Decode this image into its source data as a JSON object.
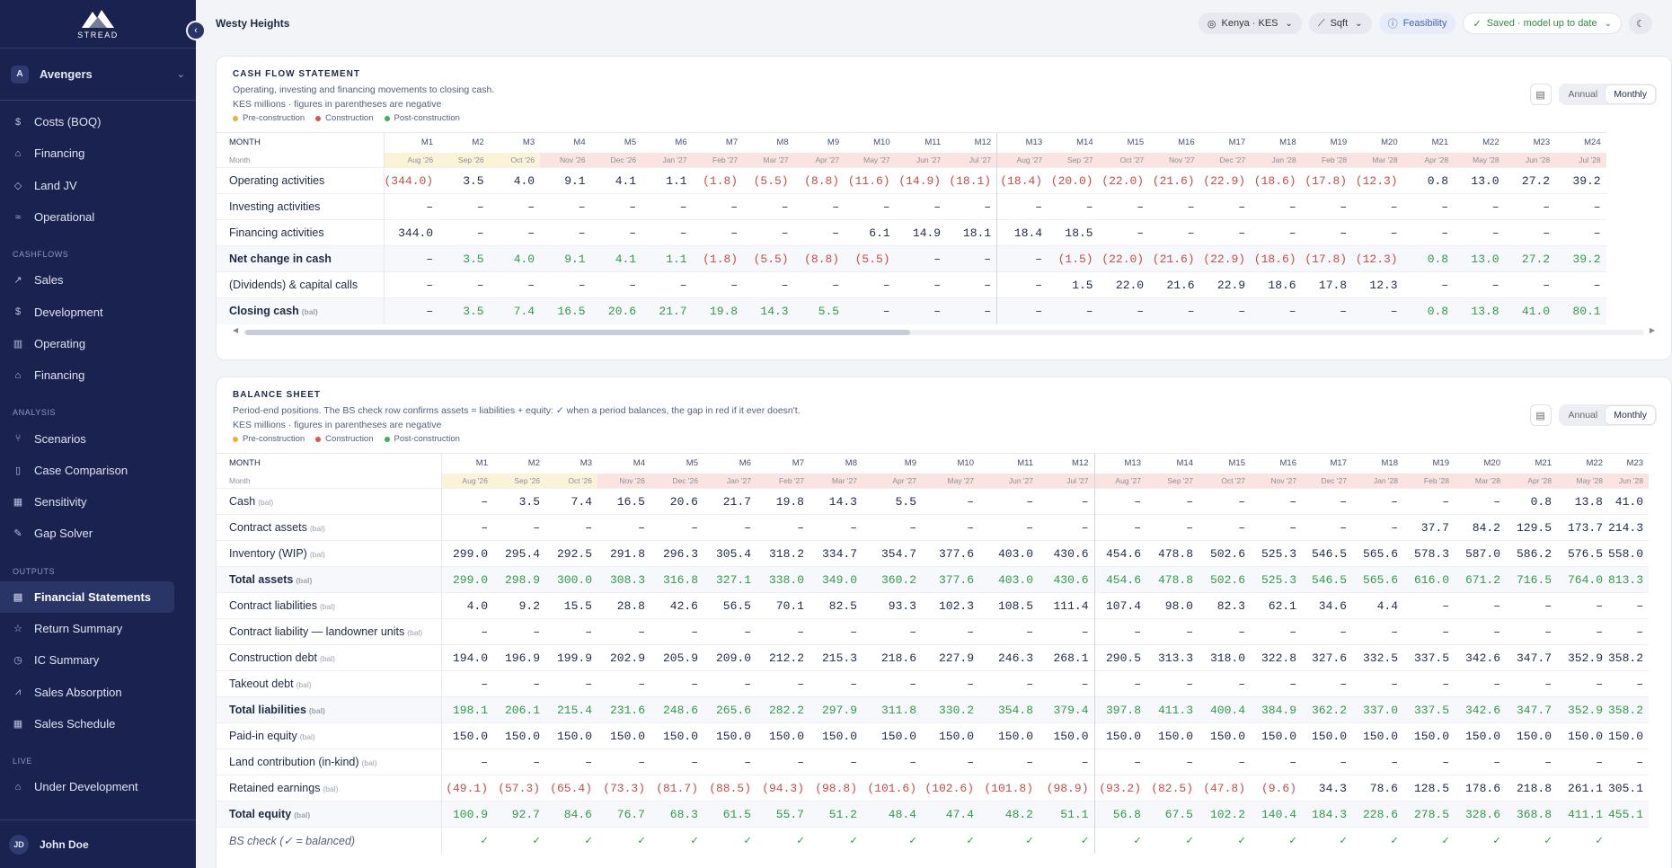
{
  "app": {
    "logo_text": "STREAD",
    "page_title": "Westy Heights"
  },
  "team": {
    "badge": "A",
    "name": "Avengers"
  },
  "sidebar": {
    "top_items": [
      {
        "label": "Costs (BOQ)",
        "icon": "dollar-icon",
        "glyph": "$"
      },
      {
        "label": "Financing",
        "icon": "bank-icon",
        "glyph": "⌂"
      },
      {
        "label": "Land JV",
        "icon": "handshake-icon",
        "glyph": "◇"
      },
      {
        "label": "Operational",
        "icon": "sliders-icon",
        "glyph": "≈"
      }
    ],
    "cashflows_title": "CASHFLOWS",
    "cashflows": [
      {
        "label": "Sales",
        "icon": "trend-icon",
        "glyph": "↗"
      },
      {
        "label": "Development",
        "icon": "dollar-icon",
        "glyph": "$"
      },
      {
        "label": "Operating",
        "icon": "bar-chart-icon",
        "glyph": "▥"
      },
      {
        "label": "Financing",
        "icon": "bank-icon",
        "glyph": "⌂"
      }
    ],
    "analysis_title": "ANALYSIS",
    "analysis": [
      {
        "label": "Scenarios",
        "icon": "branch-icon",
        "glyph": "⑂"
      },
      {
        "label": "Case Comparison",
        "icon": "columns-icon",
        "glyph": "▯"
      },
      {
        "label": "Sensitivity",
        "icon": "grid-icon",
        "glyph": "▦"
      },
      {
        "label": "Gap Solver",
        "icon": "wrench-icon",
        "glyph": "✎"
      }
    ],
    "outputs_title": "OUTPUTS",
    "outputs": [
      {
        "label": "Financial Statements",
        "icon": "document-icon",
        "glyph": "▤",
        "active": true
      },
      {
        "label": "Return Summary",
        "icon": "star-icon",
        "glyph": "☆"
      },
      {
        "label": "IC Summary",
        "icon": "history-icon",
        "glyph": "◷"
      },
      {
        "label": "Sales Absorption",
        "icon": "line-chart-icon",
        "glyph": "⩘"
      },
      {
        "label": "Sales Schedule",
        "icon": "calendar-icon",
        "glyph": "▦"
      }
    ],
    "live_title": "LIVE",
    "live": [
      {
        "label": "Under Development",
        "icon": "building-icon",
        "glyph": "⌂"
      }
    ]
  },
  "user": {
    "initials": "JD",
    "name": "John Doe"
  },
  "topbar": {
    "country": "Kenya · KES",
    "unit": "Sqft",
    "mode": "Feasibility",
    "save_status": "Saved · model up to date"
  },
  "colors": {
    "pre": "#e8b339",
    "construction": "#e0554f",
    "post": "#3fb05a",
    "sidebar": "#1a2350"
  },
  "legend": {
    "pre": "Pre-construction",
    "construction": "Construction",
    "post": "Post-construction"
  },
  "toggle": {
    "annual": "Annual",
    "monthly": "Monthly"
  },
  "cashflow": {
    "title": "CASH FLOW STATEMENT",
    "desc1": "Operating, investing and financing movements to closing cash.",
    "desc2": "KES millions · figures in parentheses are negative",
    "header_label": "MONTH",
    "month_label": "Month",
    "periods": [
      "M1",
      "M2",
      "M3",
      "M4",
      "M5",
      "M6",
      "M7",
      "M8",
      "M9",
      "M10",
      "M11",
      "M12",
      "M13",
      "M14",
      "M15",
      "M16",
      "M17",
      "M18",
      "M19",
      "M20",
      "M21",
      "M22",
      "M23",
      "M24"
    ],
    "months": [
      "Aug '26",
      "Sep '26",
      "Oct '26",
      "Nov '26",
      "Dec '26",
      "Jan '27",
      "Feb '27",
      "Mar '27",
      "Apr '27",
      "May '27",
      "Jun '27",
      "Jul '27",
      "Aug '27",
      "Sep '27",
      "Oct '27",
      "Nov '27",
      "Dec '27",
      "Jan '28",
      "Feb '28",
      "Mar '28",
      "Apr '28",
      "May '28",
      "Jun '28",
      "Jul '28"
    ],
    "phases": [
      "pre",
      "pre",
      "pre",
      "con",
      "con",
      "con",
      "con",
      "con",
      "con",
      "con",
      "con",
      "con",
      "con",
      "con",
      "con",
      "con",
      "con",
      "con",
      "con",
      "con",
      "con",
      "con",
      "con",
      "con"
    ],
    "rows": [
      {
        "label": "Operating activities",
        "values": [
          "(344.0)",
          "3.5",
          "4.0",
          "9.1",
          "4.1",
          "1.1",
          "(1.8)",
          "(5.5)",
          "(8.8)",
          "(11.6)",
          "(14.9)",
          "(18.1)",
          "(18.4)",
          "(20.0)",
          "(22.0)",
          "(21.6)",
          "(22.9)",
          "(18.6)",
          "(17.8)",
          "(12.3)",
          "0.8",
          "13.0",
          "27.2",
          "39.2"
        ]
      },
      {
        "label": "Investing activities",
        "values": [
          "–",
          "–",
          "–",
          "–",
          "–",
          "–",
          "–",
          "–",
          "–",
          "–",
          "–",
          "–",
          "–",
          "–",
          "–",
          "–",
          "–",
          "–",
          "–",
          "–",
          "–",
          "–",
          "–",
          "–"
        ]
      },
      {
        "label": "Financing activities",
        "values": [
          "344.0",
          "–",
          "–",
          "–",
          "–",
          "–",
          "–",
          "–",
          "–",
          "6.1",
          "14.9",
          "18.1",
          "18.4",
          "18.5",
          "–",
          "–",
          "–",
          "–",
          "–",
          "–",
          "–",
          "–",
          "–",
          "–"
        ]
      },
      {
        "label": "Net change in cash",
        "bold": true,
        "colored": true,
        "values": [
          "–",
          "3.5",
          "4.0",
          "9.1",
          "4.1",
          "1.1",
          "(1.8)",
          "(5.5)",
          "(8.8)",
          "(5.5)",
          "–",
          "–",
          "–",
          "(1.5)",
          "(22.0)",
          "(21.6)",
          "(22.9)",
          "(18.6)",
          "(17.8)",
          "(12.3)",
          "0.8",
          "13.0",
          "27.2",
          "39.2"
        ]
      },
      {
        "label": "(Dividends) & capital calls",
        "values": [
          "–",
          "–",
          "–",
          "–",
          "–",
          "–",
          "–",
          "–",
          "–",
          "–",
          "–",
          "–",
          "–",
          "1.5",
          "22.0",
          "21.6",
          "22.9",
          "18.6",
          "17.8",
          "12.3",
          "–",
          "–",
          "–",
          "–"
        ]
      },
      {
        "label": "Closing cash",
        "bal": "(bal)",
        "bold": true,
        "colored": true,
        "values": [
          "–",
          "3.5",
          "7.4",
          "16.5",
          "20.6",
          "21.7",
          "19.8",
          "14.3",
          "5.5",
          "–",
          "–",
          "–",
          "–",
          "–",
          "–",
          "–",
          "–",
          "–",
          "–",
          "–",
          "0.8",
          "13.8",
          "41.0",
          "80.1"
        ]
      }
    ]
  },
  "balance": {
    "title": "BALANCE SHEET",
    "desc1": "Period-end positions. The BS check row confirms assets = liabilities + equity: ✓ when a period balances, the gap in red if it ever doesn't.",
    "desc2": "KES millions · figures in parentheses are negative",
    "header_label": "MONTH",
    "month_label": "Month",
    "periods": [
      "M1",
      "M2",
      "M3",
      "M4",
      "M5",
      "M6",
      "M7",
      "M8",
      "M9",
      "M10",
      "M11",
      "M12",
      "M13",
      "M14",
      "M15",
      "M16",
      "M17",
      "M18",
      "M19",
      "M20",
      "M21",
      "M22",
      "M23"
    ],
    "months": [
      "Aug '26",
      "Sep '26",
      "Oct '26",
      "Nov '26",
      "Dec '26",
      "Jan '27",
      "Feb '27",
      "Mar '27",
      "Apr '27",
      "May '27",
      "Jun '27",
      "Jul '27",
      "Aug '27",
      "Sep '27",
      "Oct '27",
      "Nov '27",
      "Dec '27",
      "Jan '28",
      "Feb '28",
      "Mar '28",
      "Apr '28",
      "May '28",
      "Jun '28"
    ],
    "phases": [
      "pre",
      "pre",
      "pre",
      "con",
      "con",
      "con",
      "con",
      "con",
      "con",
      "con",
      "con",
      "con",
      "con",
      "con",
      "con",
      "con",
      "con",
      "con",
      "con",
      "con",
      "con",
      "con",
      "con"
    ],
    "rows": [
      {
        "label": "Cash",
        "bal": "(bal)",
        "values": [
          "–",
          "3.5",
          "7.4",
          "16.5",
          "20.6",
          "21.7",
          "19.8",
          "14.3",
          "5.5",
          "–",
          "–",
          "–",
          "–",
          "–",
          "–",
          "–",
          "–",
          "–",
          "–",
          "–",
          "0.8",
          "13.8",
          "41.0"
        ]
      },
      {
        "label": "Contract assets",
        "bal": "(bal)",
        "values": [
          "–",
          "–",
          "–",
          "–",
          "–",
          "–",
          "–",
          "–",
          "–",
          "–",
          "–",
          "–",
          "–",
          "–",
          "–",
          "–",
          "–",
          "–",
          "37.7",
          "84.2",
          "129.5",
          "173.7",
          "214.3"
        ]
      },
      {
        "label": "Inventory (WIP)",
        "bal": "(bal)",
        "values": [
          "299.0",
          "295.4",
          "292.5",
          "291.8",
          "296.3",
          "305.4",
          "318.2",
          "334.7",
          "354.7",
          "377.6",
          "403.0",
          "430.6",
          "454.6",
          "478.8",
          "502.6",
          "525.3",
          "546.5",
          "565.6",
          "578.3",
          "587.0",
          "586.2",
          "576.5",
          "558.0"
        ]
      },
      {
        "label": "Total assets",
        "bal": "(bal)",
        "bold": true,
        "colored": true,
        "values": [
          "299.0",
          "298.9",
          "300.0",
          "308.3",
          "316.8",
          "327.1",
          "338.0",
          "349.0",
          "360.2",
          "377.6",
          "403.0",
          "430.6",
          "454.6",
          "478.8",
          "502.6",
          "525.3",
          "546.5",
          "565.6",
          "616.0",
          "671.2",
          "716.5",
          "764.0",
          "813.3"
        ]
      },
      {
        "label": "Contract liabilities",
        "bal": "(bal)",
        "values": [
          "4.0",
          "9.2",
          "15.5",
          "28.8",
          "42.6",
          "56.5",
          "70.1",
          "82.5",
          "93.3",
          "102.3",
          "108.5",
          "111.4",
          "107.4",
          "98.0",
          "82.3",
          "62.1",
          "34.6",
          "4.4",
          "–",
          "–",
          "–",
          "–",
          "–"
        ]
      },
      {
        "label": "Contract liability — landowner units",
        "bal": "(bal)",
        "values": [
          "–",
          "–",
          "–",
          "–",
          "–",
          "–",
          "–",
          "–",
          "–",
          "–",
          "–",
          "–",
          "–",
          "–",
          "–",
          "–",
          "–",
          "–",
          "–",
          "–",
          "–",
          "–",
          "–"
        ]
      },
      {
        "label": "Construction debt",
        "bal": "(bal)",
        "values": [
          "194.0",
          "196.9",
          "199.9",
          "202.9",
          "205.9",
          "209.0",
          "212.2",
          "215.3",
          "218.6",
          "227.9",
          "246.3",
          "268.1",
          "290.5",
          "313.3",
          "318.0",
          "322.8",
          "327.6",
          "332.5",
          "337.5",
          "342.6",
          "347.7",
          "352.9",
          "358.2"
        ]
      },
      {
        "label": "Takeout debt",
        "bal": "(bal)",
        "values": [
          "–",
          "–",
          "–",
          "–",
          "–",
          "–",
          "–",
          "–",
          "–",
          "–",
          "–",
          "–",
          "–",
          "–",
          "–",
          "–",
          "–",
          "–",
          "–",
          "–",
          "–",
          "–",
          "–"
        ]
      },
      {
        "label": "Total liabilities",
        "bal": "(bal)",
        "bold": true,
        "colored": true,
        "values": [
          "198.1",
          "206.1",
          "215.4",
          "231.6",
          "248.6",
          "265.6",
          "282.2",
          "297.9",
          "311.8",
          "330.2",
          "354.8",
          "379.4",
          "397.8",
          "411.3",
          "400.4",
          "384.9",
          "362.2",
          "337.0",
          "337.5",
          "342.6",
          "347.7",
          "352.9",
          "358.2"
        ]
      },
      {
        "label": "Paid-in equity",
        "bal": "(bal)",
        "values": [
          "150.0",
          "150.0",
          "150.0",
          "150.0",
          "150.0",
          "150.0",
          "150.0",
          "150.0",
          "150.0",
          "150.0",
          "150.0",
          "150.0",
          "150.0",
          "150.0",
          "150.0",
          "150.0",
          "150.0",
          "150.0",
          "150.0",
          "150.0",
          "150.0",
          "150.0",
          "150.0"
        ]
      },
      {
        "label": "Land contribution (in-kind)",
        "bal": "(bal)",
        "values": [
          "–",
          "–",
          "–",
          "–",
          "–",
          "–",
          "–",
          "–",
          "–",
          "–",
          "–",
          "–",
          "–",
          "–",
          "–",
          "–",
          "–",
          "–",
          "–",
          "–",
          "–",
          "–",
          "–"
        ]
      },
      {
        "label": "Retained earnings",
        "bal": "(bal)",
        "values": [
          "(49.1)",
          "(57.3)",
          "(65.4)",
          "(73.3)",
          "(81.7)",
          "(88.5)",
          "(94.3)",
          "(98.8)",
          "(101.6)",
          "(102.6)",
          "(101.8)",
          "(98.9)",
          "(93.2)",
          "(82.5)",
          "(47.8)",
          "(9.6)",
          "34.3",
          "78.6",
          "128.5",
          "178.6",
          "218.8",
          "261.1",
          "305.1"
        ]
      },
      {
        "label": "Total equity",
        "bal": "(bal)",
        "bold": true,
        "colored": true,
        "values": [
          "100.9",
          "92.7",
          "84.6",
          "76.7",
          "68.3",
          "61.5",
          "55.7",
          "51.2",
          "48.4",
          "47.4",
          "48.2",
          "51.1",
          "56.8",
          "67.5",
          "102.2",
          "140.4",
          "184.3",
          "228.6",
          "278.5",
          "328.6",
          "368.8",
          "411.1",
          "455.1"
        ]
      },
      {
        "label": "BS check (✓ = balanced)",
        "check": true,
        "values": [
          "✓",
          "✓",
          "✓",
          "✓",
          "✓",
          "✓",
          "✓",
          "✓",
          "✓",
          "✓",
          "✓",
          "✓",
          "✓",
          "✓",
          "✓",
          "✓",
          "✓",
          "✓",
          "✓",
          "✓",
          "✓",
          "✓",
          ""
        ]
      }
    ]
  }
}
